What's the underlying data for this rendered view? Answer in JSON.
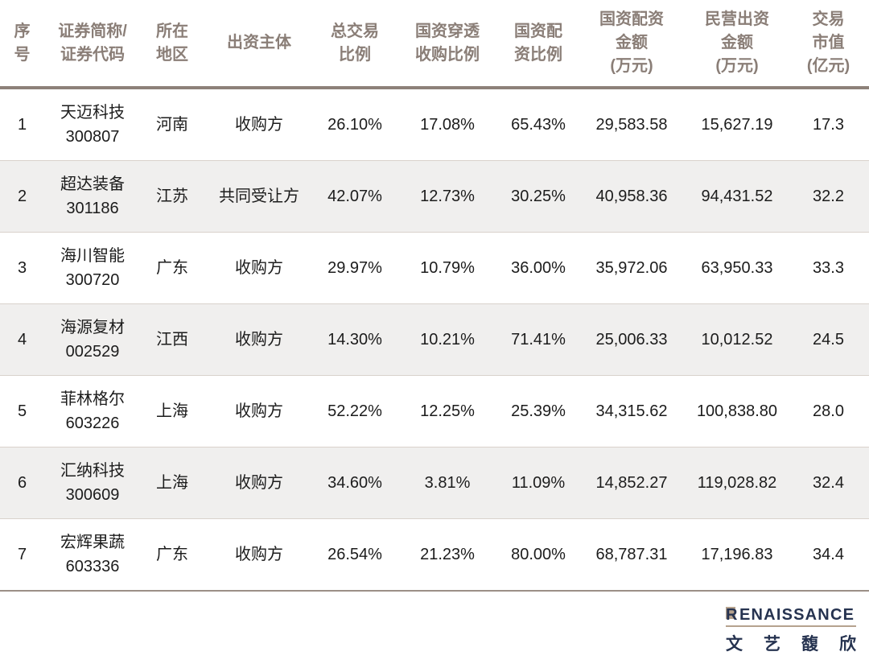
{
  "chart_data": {
    "type": "table",
    "columns": [
      "序号",
      "证券简称/证券代码",
      "所在地区",
      "出资主体",
      "总交易比例",
      "国资穿透收购比例",
      "国资配资比例",
      "国资配资金额(万元)",
      "民营出资金额(万元)",
      "交易市值(亿元)"
    ],
    "header_display": [
      "序\n号",
      "证券简称/\n证券代码",
      "所在\n地区",
      "出资主体",
      "总交易\n比例",
      "国资穿透\n收购比例",
      "国资配\n资比例",
      "国资配资\n金额\n(万元)",
      "民营出资\n金额\n(万元)",
      "交易\n市值\n(亿元)"
    ],
    "rows": [
      {
        "no": "1",
        "name": "天迈科技",
        "code": "300807",
        "region": "河南",
        "entity": "收购方",
        "total_trade_pct": "26.10%",
        "soe_penetration_pct": "17.08%",
        "soe_allocation_pct": "65.43%",
        "soe_amount_wan": "29,583.58",
        "private_amount_wan": "15,627.19",
        "market_cap_yi": "17.3"
      },
      {
        "no": "2",
        "name": "超达装备",
        "code": "301186",
        "region": "江苏",
        "entity": "共同受让方",
        "total_trade_pct": "42.07%",
        "soe_penetration_pct": "12.73%",
        "soe_allocation_pct": "30.25%",
        "soe_amount_wan": "40,958.36",
        "private_amount_wan": "94,431.52",
        "market_cap_yi": "32.2"
      },
      {
        "no": "3",
        "name": "海川智能",
        "code": "300720",
        "region": "广东",
        "entity": "收购方",
        "total_trade_pct": "29.97%",
        "soe_penetration_pct": "10.79%",
        "soe_allocation_pct": "36.00%",
        "soe_amount_wan": "35,972.06",
        "private_amount_wan": "63,950.33",
        "market_cap_yi": "33.3"
      },
      {
        "no": "4",
        "name": "海源复材",
        "code": "002529",
        "region": "江西",
        "entity": "收购方",
        "total_trade_pct": "14.30%",
        "soe_penetration_pct": "10.21%",
        "soe_allocation_pct": "71.41%",
        "soe_amount_wan": "25,006.33",
        "private_amount_wan": "10,012.52",
        "market_cap_yi": "24.5"
      },
      {
        "no": "5",
        "name": "菲林格尔",
        "code": "603226",
        "region": "上海",
        "entity": "收购方",
        "total_trade_pct": "52.22%",
        "soe_penetration_pct": "12.25%",
        "soe_allocation_pct": "25.39%",
        "soe_amount_wan": "34,315.62",
        "private_amount_wan": "100,838.80",
        "market_cap_yi": "28.0"
      },
      {
        "no": "6",
        "name": "汇纳科技",
        "code": "300609",
        "region": "上海",
        "entity": "收购方",
        "total_trade_pct": "34.60%",
        "soe_penetration_pct": "3.81%",
        "soe_allocation_pct": "11.09%",
        "soe_amount_wan": "14,852.27",
        "private_amount_wan": "119,028.82",
        "market_cap_yi": "32.4"
      },
      {
        "no": "7",
        "name": "宏辉果蔬",
        "code": "603336",
        "region": "广东",
        "entity": "收购方",
        "total_trade_pct": "26.54%",
        "soe_penetration_pct": "21.23%",
        "soe_allocation_pct": "80.00%",
        "soe_amount_wan": "68,787.31",
        "private_amount_wan": "17,196.83",
        "market_cap_yi": "34.4"
      }
    ]
  },
  "logo": {
    "brand_initial": "R",
    "brand_rest": "ENAISSANCE",
    "cn": "文艺馥欣"
  },
  "colors": {
    "header_text": "#8A7E77",
    "heavy_rule": "#8D8179",
    "row_stripe": "#F0EFEE",
    "row_divider": "#D9D2CC",
    "bottom_rule": "#9C8F87",
    "logo_navy": "#263350",
    "logo_tan": "#B5A28E"
  }
}
